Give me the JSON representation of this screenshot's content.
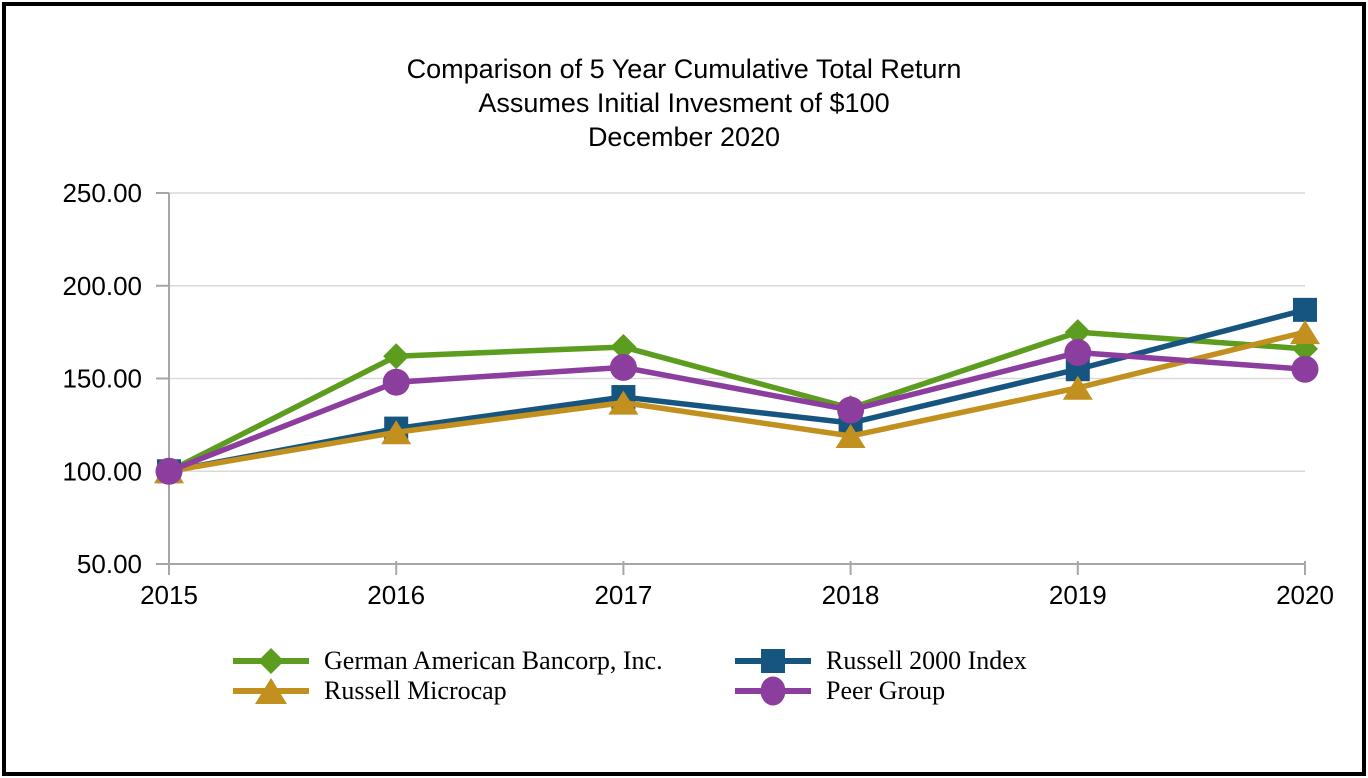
{
  "chart_data": {
    "type": "line",
    "title_lines": [
      "Comparison of 5 Year Cumulative Total Return",
      "Assumes Initial Invesment of $100",
      "December 2020"
    ],
    "categories": [
      "2015",
      "2016",
      "2017",
      "2018",
      "2019",
      "2020"
    ],
    "series": [
      {
        "name": "German American Bancorp, Inc.",
        "color": "#5C9C1E",
        "marker": "diamond",
        "values": [
          100,
          162,
          167,
          134,
          175,
          166
        ]
      },
      {
        "name": "Russell 2000 Index",
        "color": "#175581",
        "marker": "square",
        "values": [
          100,
          123,
          140,
          126,
          155,
          187
        ]
      },
      {
        "name": "Russell Microcap",
        "color": "#C2901E",
        "marker": "triangle",
        "values": [
          100,
          121,
          137,
          119,
          145,
          175
        ]
      },
      {
        "name": "Peer Group",
        "color": "#8C3E9E",
        "marker": "circle",
        "values": [
          100,
          148,
          156,
          133,
          164,
          155
        ]
      }
    ],
    "xlabel": "",
    "ylabel": "",
    "ylim": [
      50,
      250
    ],
    "ytick_step": 50,
    "ytick_labels": [
      "50.00",
      "100.00",
      "150.00",
      "200.00",
      "250.00"
    ],
    "grid": "horizontal",
    "legend_position": "bottom",
    "axis_color": "#A6A6A6",
    "gridline_color": "#D9D9D9"
  }
}
